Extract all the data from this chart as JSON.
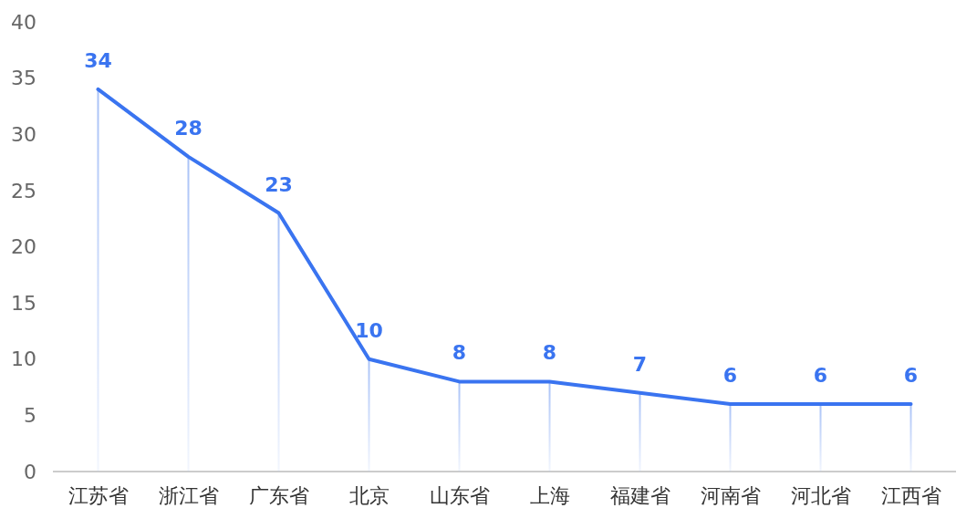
{
  "chart_data": {
    "type": "line",
    "categories": [
      "江苏省",
      "浙江省",
      "广东省",
      "北京",
      "山东省",
      "上海",
      "福建省",
      "河南省",
      "河北省",
      "江西省"
    ],
    "series": [
      {
        "type": "bar",
        "color": "#a9c2f7",
        "values": [
          34,
          28,
          23,
          10,
          8,
          8,
          7,
          6,
          6,
          6
        ],
        "value_labels": [
          "34",
          "28",
          "23",
          "10",
          "8",
          "8",
          "7",
          "6",
          "6",
          "6"
        ]
      },
      {
        "color": "#3a74f0",
        "values": [
          34,
          28,
          23,
          10,
          8,
          8,
          7,
          6,
          6,
          6
        ]
      }
    ],
    "ylim": [
      0,
      40
    ],
    "yticks": [
      0,
      5,
      10,
      15,
      20,
      25,
      30,
      35,
      40
    ],
    "grid": false,
    "marker": "none",
    "line_style": "solid"
  }
}
